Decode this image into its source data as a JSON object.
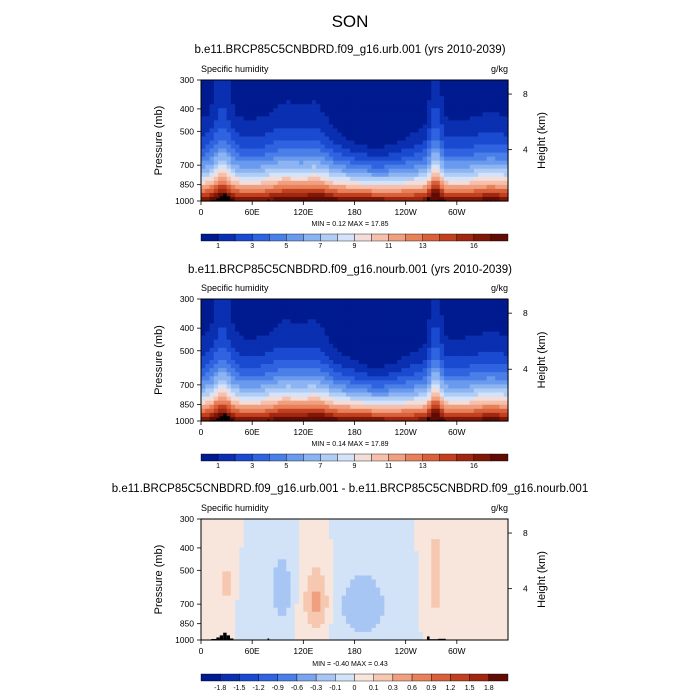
{
  "main_title": "SON",
  "panel_labels": {
    "left": "Specific humidity",
    "right": "g/kg"
  },
  "axes": {
    "ylabel_left": "Pressure (mb)",
    "ylabel_right": "Height (km)",
    "pressure_ticks": [
      300,
      400,
      500,
      700,
      850,
      1000
    ],
    "height_ticks": [
      8,
      4
    ],
    "lon_ticks": [
      "0",
      "60E",
      "120E",
      "180",
      "120W",
      "60W"
    ]
  },
  "chart_data": [
    {
      "type": "heatmap",
      "title": "b.e11.BRCP85C5CNBDRD.f09_g16.urb.001 (yrs 2010-2039)",
      "variable": "Specific humidity",
      "units": "g/kg",
      "stats_label": "MIN =   0.12  MAX =   17.85",
      "min": 0.12,
      "max": 17.85,
      "y_range": [
        1000,
        300
      ],
      "y_scale": "log",
      "x_range": [
        0,
        360
      ],
      "colorbar_levels": [
        0,
        1,
        2,
        3,
        4,
        5,
        6,
        7,
        8,
        9,
        10,
        11,
        12,
        13,
        14,
        15,
        16,
        17
      ],
      "colorbar_labels": [
        "1",
        "3",
        "5",
        "7",
        "9",
        "11",
        "13",
        "16"
      ],
      "colors": [
        "#001a8f",
        "#0a2fb0",
        "#1a4ad0",
        "#2f63e0",
        "#4a7fe8",
        "#6a9aee",
        "#8cb4f2",
        "#b0cdf6",
        "#d4e3fa",
        "#f2ddd8",
        "#f6c0ad",
        "#f0a080",
        "#e8805a",
        "#d8603a",
        "#c04020",
        "#a02810",
        "#801808",
        "#600c04"
      ]
    },
    {
      "type": "heatmap",
      "title": "b.e11.BRCP85C5CNBDRD.f09_g16.nourb.001 (yrs 2010-2039)",
      "variable": "Specific humidity",
      "units": "g/kg",
      "stats_label": "MIN =   0.14  MAX =   17.89",
      "min": 0.14,
      "max": 17.89,
      "y_range": [
        1000,
        300
      ],
      "y_scale": "log",
      "x_range": [
        0,
        360
      ],
      "colorbar_levels": [
        0,
        1,
        2,
        3,
        4,
        5,
        6,
        7,
        8,
        9,
        10,
        11,
        12,
        13,
        14,
        15,
        16,
        17
      ],
      "colorbar_labels": [
        "1",
        "3",
        "5",
        "7",
        "9",
        "11",
        "13",
        "16"
      ],
      "colors": [
        "#001a8f",
        "#0a2fb0",
        "#1a4ad0",
        "#2f63e0",
        "#4a7fe8",
        "#6a9aee",
        "#8cb4f2",
        "#b0cdf6",
        "#d4e3fa",
        "#f2ddd8",
        "#f6c0ad",
        "#f0a080",
        "#e8805a",
        "#d8603a",
        "#c04020",
        "#a02810",
        "#801808",
        "#600c04"
      ]
    },
    {
      "type": "heatmap",
      "title": "b.e11.BRCP85C5CNBDRD.f09_g16.urb.001 - b.e11.BRCP85C5CNBDRD.f09_g16.nourb.001",
      "variable": "Specific humidity",
      "units": "g/kg",
      "stats_label": "MIN =  -0.40  MAX =   0.43",
      "min": -0.4,
      "max": 0.43,
      "y_range": [
        1000,
        300
      ],
      "y_scale": "log",
      "x_range": [
        0,
        360
      ],
      "colorbar_levels": [
        -2.1,
        -1.8,
        -1.5,
        -1.2,
        -0.9,
        -0.6,
        -0.3,
        -0.1,
        0,
        0.1,
        0.3,
        0.6,
        0.9,
        1.2,
        1.5,
        1.8,
        2.1
      ],
      "colorbar_labels": [
        "-1.8",
        "-1.5",
        "-1.2",
        "-0.9",
        "-0.6",
        "-0.3",
        "-0.1",
        "0",
        "0.1",
        "0.3",
        "0.6",
        "0.9",
        "1.2",
        "1.5",
        "1.8"
      ],
      "colors": [
        "#001a8f",
        "#0a2fb0",
        "#1a4ad0",
        "#2f63e0",
        "#4a7fe8",
        "#7aa5ee",
        "#a8c6f4",
        "#d2e3f8",
        "#f8e6dc",
        "#f6c8b0",
        "#f0a080",
        "#e8805a",
        "#d8603a",
        "#c04020",
        "#a02810",
        "#600c04"
      ]
    }
  ]
}
